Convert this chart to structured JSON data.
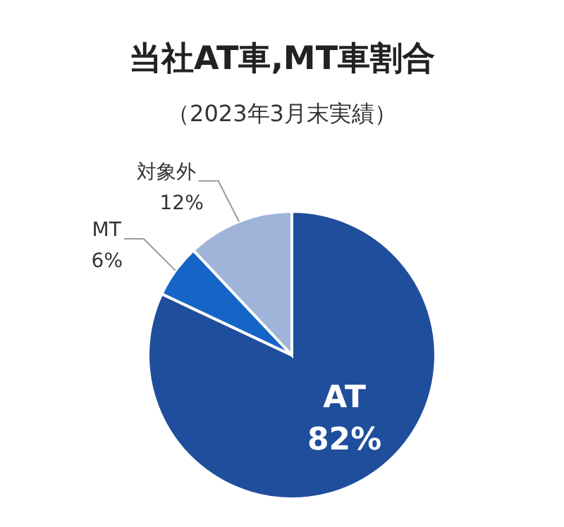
{
  "chart_data": {
    "type": "pie",
    "title": "当社AT車,MT車割合",
    "subtitle": "（2023年3月末実績）",
    "categories": [
      "AT",
      "MT",
      "対象外"
    ],
    "values": [
      82,
      6,
      12
    ],
    "value_labels": [
      "82%",
      "6%",
      "12%"
    ],
    "colors": [
      "#1f4e9c",
      "#1565c8",
      "#9fb4d8"
    ],
    "legend": false
  }
}
